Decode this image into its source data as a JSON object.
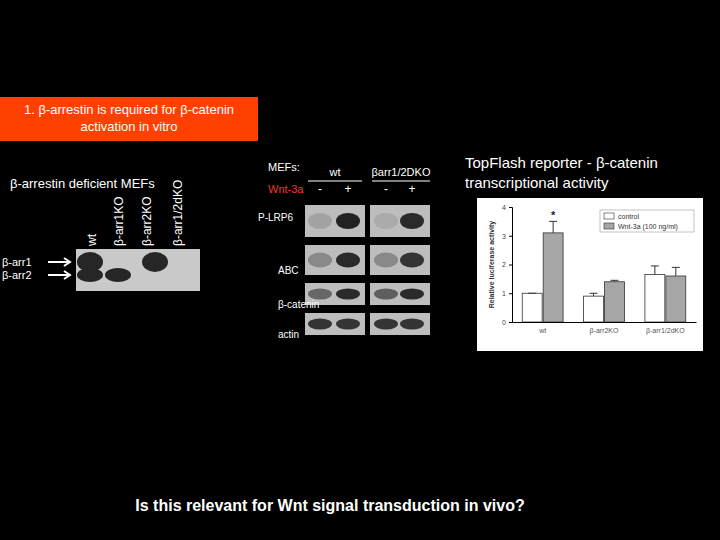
{
  "slide": {
    "header": [
      "1. β-arrestin is required for β-catenin",
      "activation in vitro"
    ],
    "left_blot": {
      "title": "β-arrestin deficient MEFs",
      "lanes": [
        "wt",
        "β-arr1KO",
        "β-arr2KO",
        "β-arr1/2dKO"
      ],
      "bands": [
        "β-arr1",
        "β-arr2"
      ]
    },
    "right_blot": {
      "row_label": "MEFs:",
      "groups": [
        "wt",
        "βarr1/2DKO"
      ],
      "treatment": "Wnt-3a",
      "lanes": [
        "-",
        "+",
        "-",
        "+"
      ],
      "rows": [
        "P-LRP6",
        "ABC",
        "β-catenin",
        "actin"
      ]
    },
    "reporter_title": [
      "TopFlash reporter - β-catenin",
      "transcriptional activity"
    ],
    "question": "Is this relevant for Wnt signal transduction in vivo?"
  },
  "chart_data": {
    "type": "bar",
    "y_label": "Relative luciferase activity",
    "categories": [
      "wt",
      "β-arr2KO",
      "β-arr1/2dKO"
    ],
    "series": [
      {
        "name": "control",
        "color": "#ffffff",
        "values": [
          1.0,
          0.9,
          1.65
        ],
        "errors": [
          0,
          0.1,
          0.3
        ]
      },
      {
        "name": "Wnt-3a (100 ng/ml)",
        "color": "#a6a6a6",
        "values": [
          3.1,
          1.4,
          1.6
        ],
        "errors": [
          0.4,
          0.05,
          0.3
        ],
        "significance": [
          "*",
          null,
          null
        ]
      }
    ],
    "ylim": [
      0,
      4
    ],
    "yticks": [
      0,
      1,
      2,
      3,
      4
    ],
    "legend": "top-right"
  }
}
